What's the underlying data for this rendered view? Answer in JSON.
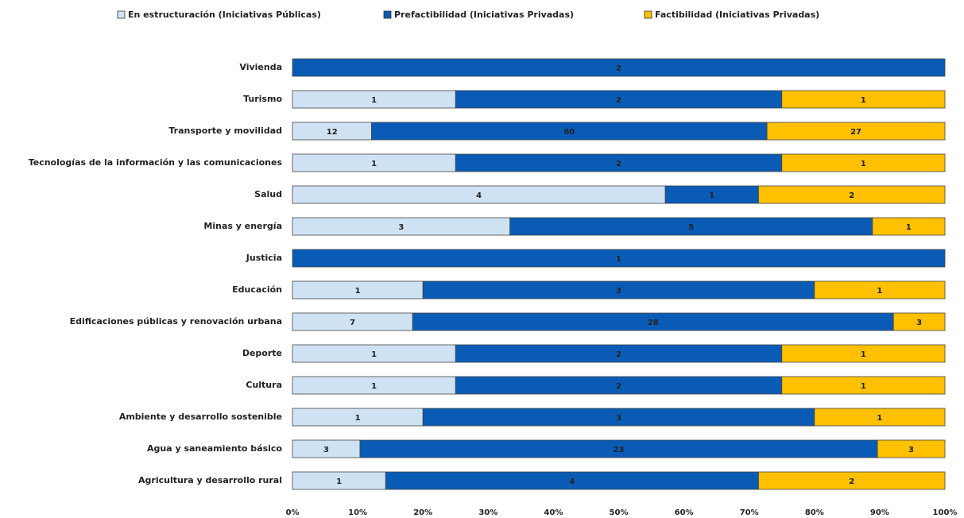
{
  "chart_data": {
    "type": "bar",
    "orientation": "horizontal",
    "stacking": "percent",
    "categories": [
      "Vivienda",
      "Turismo",
      "Transporte y movilidad",
      "Tecnologías de la información y las comunicaciones",
      "Salud",
      "Minas y energía",
      "Justicia",
      "Educación",
      "Edificaciones públicas y renovación urbana",
      "Deporte",
      "Cultura",
      "Ambiente y desarrollo sostenible",
      "Agua y saneamiento básico",
      "Agricultura y desarrollo rural"
    ],
    "series": [
      {
        "name": "En estructuración (Iniciativas Públicas)",
        "color": "#cfe2f3",
        "values": [
          0,
          1,
          12,
          1,
          4,
          3,
          0,
          1,
          7,
          1,
          1,
          1,
          3,
          1
        ]
      },
      {
        "name": "Prefactibilidad (Iniciativas Privadas)",
        "color": "#0a5bb5",
        "values": [
          2,
          2,
          60,
          2,
          1,
          5,
          1,
          3,
          28,
          2,
          2,
          3,
          23,
          4
        ]
      },
      {
        "name": "Factibilidad (Iniciativas Privadas)",
        "color": "#ffc000",
        "values": [
          0,
          1,
          27,
          1,
          2,
          1,
          0,
          1,
          3,
          1,
          1,
          1,
          3,
          2
        ]
      }
    ],
    "xlim": [
      0,
      100
    ],
    "xticks": [
      {
        "value": 0,
        "label": "0%"
      },
      {
        "value": 10,
        "label": "10%"
      },
      {
        "value": 20,
        "label": "20%"
      },
      {
        "value": 30,
        "label": "30%"
      },
      {
        "value": 40,
        "label": "40%"
      },
      {
        "value": 50,
        "label": "50%"
      },
      {
        "value": 60,
        "label": "60%"
      },
      {
        "value": 70,
        "label": "70%"
      },
      {
        "value": 80,
        "label": "80%"
      },
      {
        "value": 90,
        "label": "90%"
      },
      {
        "value": 100,
        "label": "100%"
      }
    ],
    "legend": "top",
    "grid": false
  }
}
